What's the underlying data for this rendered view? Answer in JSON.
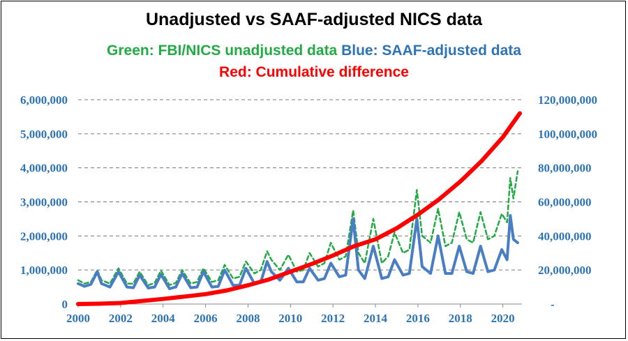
{
  "header": {
    "title": "Unadjusted vs SAAF-adjusted NICS data",
    "subtitle_green": "Green: FBI/NICS unadjusted data",
    "subtitle_blue": "Blue: SAAF-adjusted data",
    "subtitle_red": "Red: Cumulative difference"
  },
  "colors": {
    "green": "#22aa44",
    "blue": "#4a7ec4",
    "red": "#ff0000",
    "axis_text": "#2e74b5"
  },
  "chart_data": {
    "type": "line",
    "title": "Unadjusted vs SAAF-adjusted NICS data",
    "grid": true,
    "grid_style": "dashed horizontal",
    "x_ticks": [
      "2000",
      "2002",
      "2004",
      "2006",
      "2008",
      "2010",
      "2012",
      "2014",
      "2016",
      "2018",
      "2020"
    ],
    "xlim": [
      2000,
      2020.9
    ],
    "y_left": {
      "ticks": [
        "0",
        "1,000,000",
        "2,000,000",
        "3,000,000",
        "4,000,000",
        "5,000,000",
        "6,000,000"
      ],
      "lim": [
        0,
        6000000
      ]
    },
    "y_right": {
      "ticks": [
        "-",
        "20,000,000",
        "40,000,000",
        "60,000,000",
        "80,000,000",
        "100,000,000",
        "120,000,000"
      ],
      "lim": [
        0,
        120000000
      ]
    },
    "series": [
      {
        "name": "FBI/NICS unadjusted data",
        "color": "#22aa44",
        "style": "dashed",
        "axis": "left",
        "x": [
          2000,
          2000.3,
          2000.6,
          2000.9,
          2001.1,
          2001.5,
          2001.9,
          2002.3,
          2002.6,
          2002.9,
          2003.3,
          2003.6,
          2003.9,
          2004.3,
          2004.6,
          2004.9,
          2005.3,
          2005.6,
          2005.9,
          2006.3,
          2006.6,
          2006.9,
          2007.3,
          2007.6,
          2007.9,
          2008.3,
          2008.6,
          2008.9,
          2009.1,
          2009.5,
          2009.9,
          2010.3,
          2010.6,
          2010.9,
          2011.3,
          2011.6,
          2011.9,
          2012.3,
          2012.6,
          2012.95,
          2013.2,
          2013.5,
          2013.9,
          2014.3,
          2014.6,
          2014.9,
          2015.3,
          2015.6,
          2015.95,
          2016.2,
          2016.6,
          2016.95,
          2017.3,
          2017.6,
          2017.95,
          2018.3,
          2018.6,
          2018.95,
          2019.3,
          2019.6,
          2019.95,
          2020.2,
          2020.35,
          2020.5,
          2020.7
        ],
        "values": [
          700000,
          600000,
          650000,
          1000000,
          700000,
          600000,
          1050000,
          600000,
          600000,
          950000,
          550000,
          620000,
          980000,
          560000,
          620000,
          1000000,
          600000,
          650000,
          1050000,
          650000,
          700000,
          1150000,
          750000,
          800000,
          1250000,
          900000,
          1000000,
          1550000,
          1300000,
          1000000,
          1450000,
          950000,
          1000000,
          1500000,
          1100000,
          1200000,
          1800000,
          1300000,
          1400000,
          2750000,
          1500000,
          1200000,
          2500000,
          1200000,
          1400000,
          2100000,
          1500000,
          1600000,
          3350000,
          2000000,
          1800000,
          2800000,
          1700000,
          1800000,
          2700000,
          1900000,
          1800000,
          2700000,
          1900000,
          2000000,
          2650000,
          2400000,
          3700000,
          3100000,
          3900000
        ]
      },
      {
        "name": "SAAF-adjusted data",
        "color": "#4a7ec4",
        "style": "solid",
        "axis": "left",
        "x": [
          2000,
          2000.3,
          2000.6,
          2000.9,
          2001.1,
          2001.5,
          2001.9,
          2002.3,
          2002.6,
          2002.9,
          2003.3,
          2003.6,
          2003.9,
          2004.3,
          2004.6,
          2004.9,
          2005.3,
          2005.6,
          2005.9,
          2006.3,
          2006.6,
          2006.9,
          2007.3,
          2007.6,
          2007.9,
          2008.3,
          2008.6,
          2008.9,
          2009.1,
          2009.5,
          2009.9,
          2010.3,
          2010.6,
          2010.9,
          2011.3,
          2011.6,
          2011.9,
          2012.3,
          2012.6,
          2012.95,
          2013.2,
          2013.5,
          2013.9,
          2014.3,
          2014.6,
          2014.9,
          2015.3,
          2015.6,
          2015.95,
          2016.2,
          2016.6,
          2016.95,
          2017.3,
          2017.6,
          2017.95,
          2018.3,
          2018.6,
          2018.95,
          2019.3,
          2019.6,
          2019.95,
          2020.2,
          2020.35,
          2020.5,
          2020.7
        ],
        "values": [
          600000,
          520000,
          580000,
          950000,
          600000,
          500000,
          950000,
          500000,
          480000,
          850000,
          470000,
          500000,
          870000,
          450000,
          500000,
          900000,
          480000,
          500000,
          950000,
          500000,
          520000,
          1000000,
          550000,
          550000,
          1050000,
          600000,
          650000,
          1250000,
          950000,
          700000,
          1050000,
          650000,
          650000,
          1050000,
          700000,
          750000,
          1200000,
          800000,
          850000,
          2500000,
          1000000,
          750000,
          1700000,
          750000,
          800000,
          1300000,
          850000,
          900000,
          2500000,
          1100000,
          900000,
          2000000,
          900000,
          900000,
          1700000,
          950000,
          900000,
          1700000,
          950000,
          1000000,
          1600000,
          1300000,
          2600000,
          1900000,
          1800000
        ]
      },
      {
        "name": "Cumulative difference",
        "color": "#ff0000",
        "style": "solid",
        "axis": "right",
        "x": [
          2000,
          2001,
          2002,
          2003,
          2004,
          2005,
          2006,
          2007,
          2008,
          2009,
          2010,
          2011,
          2012,
          2013,
          2014,
          2015,
          2016,
          2017,
          2018,
          2019,
          2020,
          2020.8
        ],
        "values": [
          0,
          200000,
          600000,
          1800000,
          3000000,
          4400000,
          5800000,
          8000000,
          11000000,
          14500000,
          19000000,
          23500000,
          28500000,
          34000000,
          38000000,
          44500000,
          52500000,
          61500000,
          72000000,
          84000000,
          98000000,
          112000000
        ]
      }
    ]
  }
}
